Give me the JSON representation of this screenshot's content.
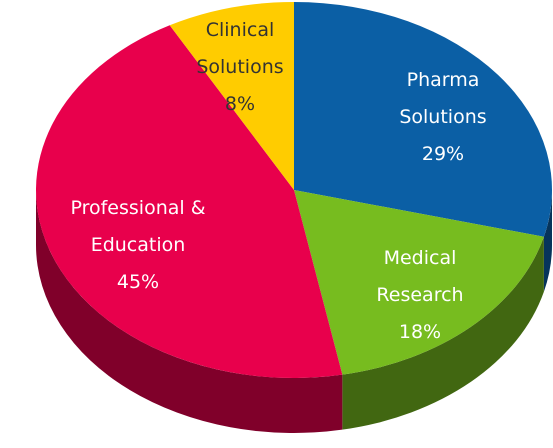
{
  "chart_data": {
    "type": "pie3d",
    "categories": [
      "Pharma Solutions",
      "Medical Research",
      "Professional & Education",
      "Clinical Solutions"
    ],
    "values": [
      29,
      18,
      45,
      8
    ],
    "value_labels": [
      "29%",
      "18%",
      "45%",
      "8%"
    ],
    "colors": [
      "#0b5fa5",
      "#77bc1f",
      "#e8004c",
      "#ffcc00"
    ]
  }
}
